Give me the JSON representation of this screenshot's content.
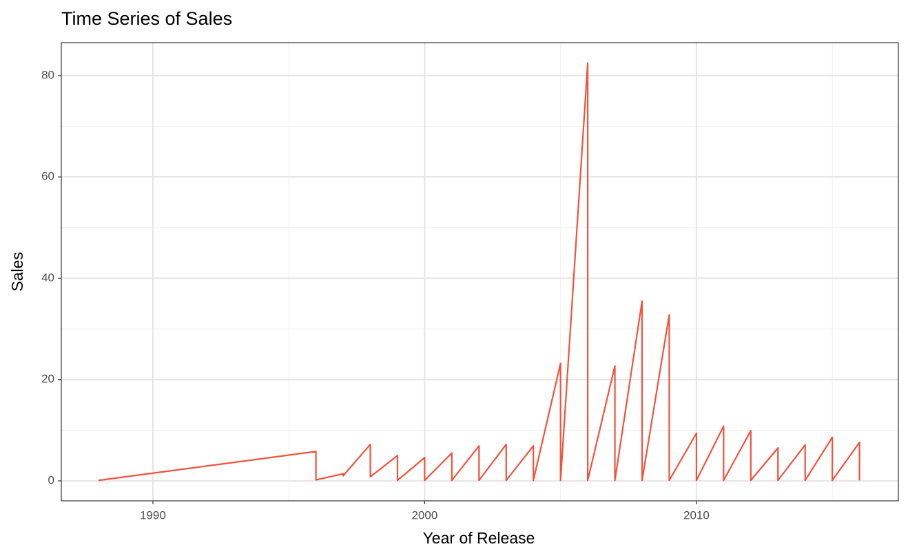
{
  "chart_data": {
    "type": "line",
    "title": "Time Series of Sales",
    "x_label": "Year of Release",
    "y_label": "Sales",
    "series": [
      {
        "name": "Sales",
        "color": "#f4513b",
        "x": [
          1988,
          1996,
          1996,
          1997,
          1997,
          1998,
          1998,
          1999,
          1999,
          2000,
          2000,
          2001,
          2001,
          2002,
          2002,
          2003,
          2003,
          2004,
          2004,
          2005,
          2005,
          2006,
          2006,
          2007,
          2007,
          2008,
          2008,
          2009,
          2009,
          2010,
          2010,
          2011,
          2011,
          2012,
          2012,
          2013,
          2013,
          2014,
          2014,
          2015,
          2015,
          2016,
          2016
        ],
        "values": [
          0.1,
          5.8,
          0.2,
          1.4,
          1.0,
          7.2,
          0.8,
          5.0,
          0.1,
          4.6,
          0.1,
          5.5,
          0.1,
          6.9,
          0.1,
          7.2,
          0.1,
          6.9,
          0.1,
          23.2,
          0.1,
          82.5,
          0.1,
          22.7,
          0.1,
          35.5,
          0.1,
          32.8,
          0.1,
          9.4,
          0.1,
          10.8,
          0.1,
          9.9,
          0.1,
          6.5,
          0.1,
          7.1,
          0.1,
          8.6,
          0.1,
          7.6,
          0.1
        ]
      }
    ],
    "xlim": [
      1986.63,
      2017.43
    ],
    "xticks": [
      1990,
      2000,
      2010
    ],
    "ylim": [
      -3.94,
      86.5
    ],
    "yticks": [
      0,
      20,
      40,
      60,
      80
    ],
    "grid": true,
    "minor_grid": true
  }
}
